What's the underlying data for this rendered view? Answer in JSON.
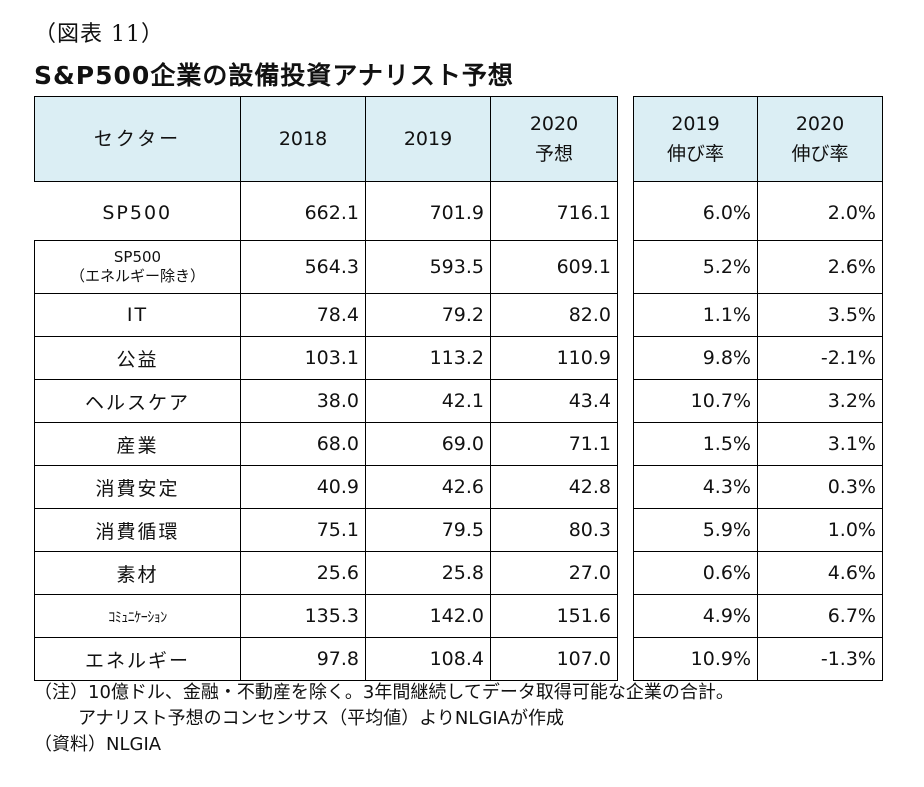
{
  "figure_label": "（図表 11）",
  "title": "S&P500企業の設備投資アナリスト予想",
  "main_headers": [
    "セクター",
    "2018",
    "2019",
    "2020\n予想"
  ],
  "growth_headers": [
    "2019\n伸び率",
    "2020\n伸び率"
  ],
  "rows": [
    {
      "sector": "SP500",
      "sector_line2": "",
      "v2018": "662.1",
      "v2019": "701.9",
      "v2020": "716.1",
      "g2019": "6.0%",
      "g2020": "2.0%"
    },
    {
      "sector": "SP500",
      "sector_line2": "（エネルギー除き）",
      "v2018": "564.3",
      "v2019": "593.5",
      "v2020": "609.1",
      "g2019": "5.2%",
      "g2020": "2.6%"
    },
    {
      "sector": "IT",
      "sector_line2": "",
      "v2018": "78.4",
      "v2019": "79.2",
      "v2020": "82.0",
      "g2019": "1.1%",
      "g2020": "3.5%"
    },
    {
      "sector": "公益",
      "sector_line2": "",
      "v2018": "103.1",
      "v2019": "113.2",
      "v2020": "110.9",
      "g2019": "9.8%",
      "g2020": "-2.1%"
    },
    {
      "sector": "ヘルスケア",
      "sector_line2": "",
      "v2018": "38.0",
      "v2019": "42.1",
      "v2020": "43.4",
      "g2019": "10.7%",
      "g2020": "3.2%"
    },
    {
      "sector": "産業",
      "sector_line2": "",
      "v2018": "68.0",
      "v2019": "69.0",
      "v2020": "71.1",
      "g2019": "1.5%",
      "g2020": "3.1%"
    },
    {
      "sector": "消費安定",
      "sector_line2": "",
      "v2018": "40.9",
      "v2019": "42.6",
      "v2020": "42.8",
      "g2019": "4.3%",
      "g2020": "0.3%"
    },
    {
      "sector": "消費循環",
      "sector_line2": "",
      "v2018": "75.1",
      "v2019": "79.5",
      "v2020": "80.3",
      "g2019": "5.9%",
      "g2020": "1.0%"
    },
    {
      "sector": "素材",
      "sector_line2": "",
      "v2018": "25.6",
      "v2019": "25.8",
      "v2020": "27.0",
      "g2019": "0.6%",
      "g2020": "4.6%"
    },
    {
      "sector": "ｺﾐｭﾆｹｰｼｮﾝ",
      "sector_line2": "",
      "v2018": "135.3",
      "v2019": "142.0",
      "v2020": "151.6",
      "g2019": "4.9%",
      "g2020": "6.7%"
    },
    {
      "sector": "エネルギー",
      "sector_line2": "",
      "v2018": "97.8",
      "v2019": "108.4",
      "v2020": "107.0",
      "g2019": "10.9%",
      "g2020": "-1.3%"
    }
  ],
  "notes": {
    "note_line1": "（注）10億ドル、金融・不動産を除く。3年間継続してデータ取得可能な企業の合計。",
    "note_line2": "アナリスト予想のコンセンサス（平均値）よりNLGIAが作成",
    "source": "（資料）NLGIA"
  },
  "colors": {
    "header_bg": "#dbeef4",
    "border": "#000000"
  }
}
